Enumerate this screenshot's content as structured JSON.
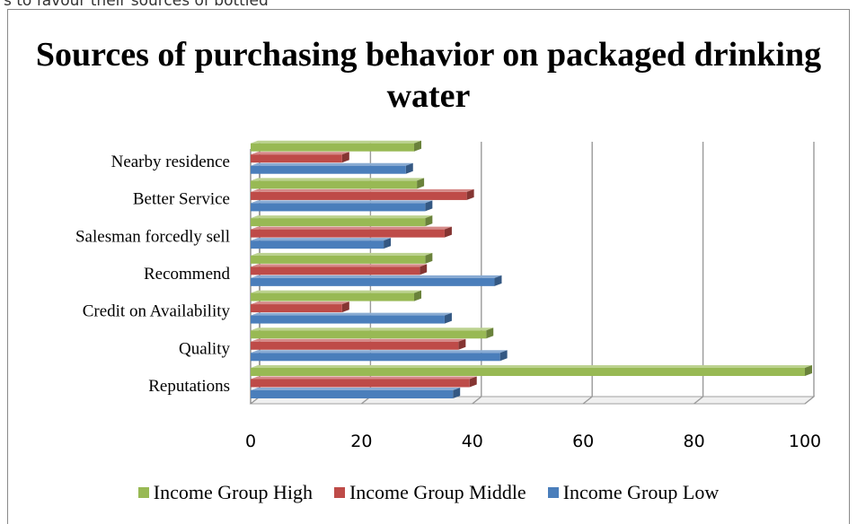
{
  "page_text": "s to favour their sources of bottled",
  "chart_data": {
    "type": "bar",
    "orientation": "horizontal",
    "title": "Sources of purchasing behavior on packaged drinking water",
    "categories": [
      "Reputations",
      "Quality",
      "Credit on Availability",
      "Recommend",
      "Salesman forcedly sell",
      "Better Service",
      "Nearby residence"
    ],
    "category_labels": [
      "Reputations",
      "Quality",
      "Credit on Availability",
      "Recommend ",
      "Salesman forcedly sell",
      "Better Service",
      "Nearby residence"
    ],
    "series": [
      {
        "name": "Income Group Low",
        "color": "#4a7ebb",
        "values": [
          36.5,
          45,
          35,
          44,
          24,
          31.5,
          28
        ]
      },
      {
        "name": "Income Group Middle",
        "color": "#be4b48",
        "values": [
          39.5,
          37.5,
          16.5,
          30.5,
          35,
          39,
          16.5
        ]
      },
      {
        "name": "Income Group High",
        "color": "#98b954",
        "values": [
          100,
          42.5,
          29.5,
          31.5,
          31.5,
          30,
          29.5
        ]
      }
    ],
    "legend_order": [
      "Income Group High",
      "Income Group Middle",
      "Income Group Low"
    ],
    "xlim": [
      0,
      100
    ],
    "xticks": [
      0,
      20,
      40,
      60,
      80,
      100
    ],
    "grid": true,
    "legend_position": "bottom",
    "style": "3d-bar"
  }
}
